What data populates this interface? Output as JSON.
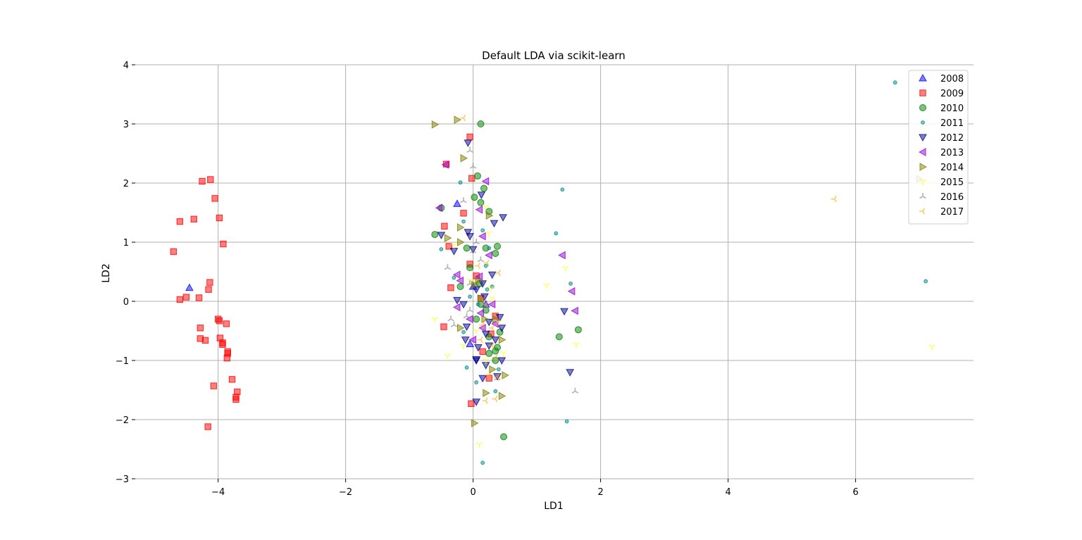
{
  "chart_data": {
    "type": "scatter",
    "title": "Default LDA via scikit-learn",
    "xlabel": "LD1",
    "ylabel": "LD2",
    "xlim": [
      -5.3,
      7.85
    ],
    "ylim": [
      -3.0,
      4.0
    ],
    "xticks": [
      -4,
      -2,
      0,
      2,
      4,
      6
    ],
    "yticks": [
      -3,
      -2,
      -1,
      0,
      1,
      2,
      3,
      4
    ],
    "xtick_labels": [
      "−4",
      "−2",
      "0",
      "2",
      "4",
      "6"
    ],
    "ytick_labels": [
      "−3",
      "−2",
      "−1",
      "0",
      "1",
      "2",
      "3",
      "4"
    ],
    "grid": true,
    "legend_position": "top-right",
    "series": [
      {
        "name": "2008",
        "marker": "triangle-up",
        "color": "#0000ff",
        "points": [
          [
            -4.45,
            0.23
          ],
          [
            -0.25,
            1.65
          ],
          [
            0.0,
            0.25
          ],
          [
            0.2,
            -0.05
          ],
          [
            -0.05,
            -0.72
          ]
        ]
      },
      {
        "name": "2009",
        "marker": "square",
        "color": "#ff0000",
        "points": [
          [
            -4.7,
            0.84
          ],
          [
            -4.6,
            1.35
          ],
          [
            -4.38,
            1.39
          ],
          [
            -4.25,
            2.03
          ],
          [
            -4.12,
            2.06
          ],
          [
            -4.05,
            1.74
          ],
          [
            -3.98,
            1.41
          ],
          [
            -3.92,
            0.97
          ],
          [
            -4.6,
            0.03
          ],
          [
            -4.5,
            0.07
          ],
          [
            -4.3,
            0.06
          ],
          [
            -4.15,
            0.2
          ],
          [
            -4.13,
            0.32
          ],
          [
            -4.0,
            -0.3
          ],
          [
            -3.98,
            -0.33
          ],
          [
            -3.87,
            -0.38
          ],
          [
            -4.28,
            -0.45
          ],
          [
            -4.28,
            -0.63
          ],
          [
            -4.2,
            -0.66
          ],
          [
            -3.97,
            -0.62
          ],
          [
            -3.93,
            -0.7
          ],
          [
            -3.93,
            -0.73
          ],
          [
            -3.85,
            -0.85
          ],
          [
            -3.85,
            -0.88
          ],
          [
            -3.86,
            -0.96
          ],
          [
            -3.78,
            -1.32
          ],
          [
            -4.07,
            -1.43
          ],
          [
            -3.7,
            -1.53
          ],
          [
            -3.72,
            -1.62
          ],
          [
            -3.72,
            -1.66
          ],
          [
            -4.16,
            -2.12
          ],
          [
            -0.05,
            2.78
          ],
          [
            -0.42,
            2.32
          ],
          [
            -0.02,
            2.08
          ],
          [
            -0.15,
            1.49
          ],
          [
            -0.45,
            1.27
          ],
          [
            -0.38,
            0.93
          ],
          [
            -0.35,
            0.23
          ],
          [
            -0.05,
            0.63
          ],
          [
            0.05,
            0.43
          ],
          [
            -0.46,
            -0.43
          ],
          [
            0.12,
            0.05
          ],
          [
            0.28,
            -0.55
          ],
          [
            -0.03,
            -1.73
          ],
          [
            0.25,
            -1.3
          ],
          [
            0.35,
            -0.25
          ],
          [
            0.15,
            -0.85
          ]
        ]
      },
      {
        "name": "2010",
        "marker": "circle",
        "color": "#008000",
        "points": [
          [
            0.12,
            3.0
          ],
          [
            0.07,
            2.12
          ],
          [
            0.17,
            1.91
          ],
          [
            0.02,
            1.76
          ],
          [
            0.12,
            1.67
          ],
          [
            -0.5,
            1.58
          ],
          [
            0.25,
            1.52
          ],
          [
            -0.6,
            1.13
          ],
          [
            0.38,
            0.93
          ],
          [
            -0.1,
            0.9
          ],
          [
            0.35,
            0.81
          ],
          [
            -0.05,
            0.57
          ],
          [
            0.1,
            0.3
          ],
          [
            0.12,
            -0.05
          ],
          [
            0.2,
            -0.15
          ],
          [
            0.05,
            -0.3
          ],
          [
            0.42,
            -0.52
          ],
          [
            0.25,
            -0.6
          ],
          [
            0.38,
            -0.78
          ],
          [
            0.35,
            -0.84
          ],
          [
            0.25,
            -0.88
          ],
          [
            0.35,
            -1.0
          ],
          [
            1.35,
            -0.6
          ],
          [
            1.65,
            -0.48
          ],
          [
            0.48,
            -2.29
          ],
          [
            -0.2,
            0.25
          ],
          [
            0.2,
            0.9
          ]
        ]
      },
      {
        "name": "2011",
        "marker": "dot",
        "color": "#008b8b",
        "points": [
          [
            6.62,
            3.7
          ],
          [
            7.1,
            0.34
          ],
          [
            1.4,
            1.89
          ],
          [
            1.3,
            1.15
          ],
          [
            1.53,
            0.3
          ],
          [
            1.47,
            -2.03
          ],
          [
            0.15,
            -2.73
          ],
          [
            -0.2,
            2.01
          ],
          [
            -0.15,
            1.35
          ],
          [
            0.15,
            1.2
          ],
          [
            -0.5,
            0.88
          ],
          [
            0.25,
            0.9
          ],
          [
            0.3,
            0.25
          ],
          [
            -0.05,
            0.08
          ],
          [
            0.22,
            0.2
          ],
          [
            -0.15,
            -0.52
          ],
          [
            0.08,
            -0.05
          ],
          [
            -0.1,
            -1.12
          ],
          [
            0.05,
            -1.37
          ],
          [
            0.4,
            -1.15
          ],
          [
            0.35,
            -1.52
          ],
          [
            0.2,
            0.6
          ],
          [
            -0.3,
            0.4
          ]
        ]
      },
      {
        "name": "2012",
        "marker": "triangle-down",
        "color": "#00008b",
        "points": [
          [
            -0.08,
            2.68
          ],
          [
            0.13,
            1.8
          ],
          [
            0.47,
            1.42
          ],
          [
            0.33,
            1.32
          ],
          [
            -0.08,
            1.17
          ],
          [
            -0.05,
            1.1
          ],
          [
            -0.5,
            1.12
          ],
          [
            0.0,
            0.88
          ],
          [
            -0.3,
            0.85
          ],
          [
            0.15,
            0.3
          ],
          [
            0.3,
            0.45
          ],
          [
            0.05,
            0.2
          ],
          [
            0.18,
            0.08
          ],
          [
            -0.25,
            0.02
          ],
          [
            -0.15,
            -0.05
          ],
          [
            0.42,
            -0.27
          ],
          [
            0.25,
            -0.35
          ],
          [
            0.45,
            -0.45
          ],
          [
            0.2,
            -0.55
          ],
          [
            -0.1,
            -0.43
          ],
          [
            0.35,
            -0.65
          ],
          [
            0.45,
            -1.0
          ],
          [
            0.05,
            -0.98
          ],
          [
            0.05,
            -1.0
          ],
          [
            0.2,
            -1.08
          ],
          [
            0.38,
            -1.27
          ],
          [
            0.15,
            -1.3
          ],
          [
            0.05,
            -1.7
          ],
          [
            1.43,
            -0.17
          ],
          [
            1.52,
            -1.2
          ],
          [
            -0.12,
            -0.65
          ],
          [
            0.08,
            -0.78
          ],
          [
            0.25,
            -0.75
          ]
        ]
      },
      {
        "name": "2013",
        "marker": "triangle-left",
        "color": "#9400d3",
        "points": [
          [
            -0.43,
            2.31
          ],
          [
            0.2,
            2.03
          ],
          [
            -0.53,
            1.58
          ],
          [
            0.1,
            1.55
          ],
          [
            0.15,
            1.1
          ],
          [
            0.25,
            0.78
          ],
          [
            -0.25,
            0.45
          ],
          [
            0.1,
            0.42
          ],
          [
            -0.2,
            0.35
          ],
          [
            1.4,
            0.78
          ],
          [
            1.55,
            0.17
          ],
          [
            1.6,
            -0.16
          ],
          [
            -0.25,
            -0.1
          ],
          [
            -0.05,
            -0.3
          ],
          [
            0.12,
            -0.2
          ],
          [
            0.3,
            -0.05
          ],
          [
            0.15,
            -0.45
          ],
          [
            0.35,
            -0.38
          ],
          [
            0.0,
            -0.65
          ]
        ]
      },
      {
        "name": "2014",
        "marker": "triangle-right",
        "color": "#808000",
        "points": [
          [
            -0.6,
            2.99
          ],
          [
            -0.25,
            3.07
          ],
          [
            -0.15,
            2.42
          ],
          [
            0.25,
            1.45
          ],
          [
            -0.2,
            1.25
          ],
          [
            -0.4,
            1.07
          ],
          [
            -0.2,
            1.0
          ],
          [
            0.08,
            0.35
          ],
          [
            0.02,
            0.28
          ],
          [
            0.35,
            -0.3
          ],
          [
            0.18,
            -0.3
          ],
          [
            -0.2,
            -0.45
          ],
          [
            0.45,
            -0.65
          ],
          [
            0.5,
            -1.25
          ],
          [
            0.2,
            -1.55
          ],
          [
            0.45,
            -1.6
          ],
          [
            0.02,
            -2.06
          ],
          [
            7.0,
            2.07
          ],
          [
            0.3,
            -1.15
          ],
          [
            0.12,
            0.05
          ]
        ]
      },
      {
        "name": "2015",
        "marker": "tri-down",
        "color": "#ffff00",
        "points": [
          [
            0.2,
            1.6
          ],
          [
            0.25,
            1.15
          ],
          [
            -0.3,
            0.95
          ],
          [
            -0.6,
            -0.3
          ],
          [
            -0.4,
            -0.92
          ],
          [
            -0.15,
            -0.75
          ],
          [
            0.1,
            -2.42
          ],
          [
            1.15,
            0.27
          ],
          [
            1.45,
            0.56
          ],
          [
            1.62,
            -0.73
          ],
          [
            7.2,
            -0.77
          ],
          [
            7.15,
            2.03
          ],
          [
            0.3,
            0.05
          ],
          [
            0.4,
            -0.35
          ],
          [
            0.05,
            -0.5
          ],
          [
            0.48,
            -0.88
          ],
          [
            0.2,
            -1.0
          ],
          [
            -0.05,
            0.35
          ],
          [
            0.28,
            0.22
          ]
        ]
      },
      {
        "name": "2016",
        "marker": "tri-up",
        "color": "#808080",
        "points": [
          [
            -0.05,
            2.55
          ],
          [
            0.0,
            2.28
          ],
          [
            -0.15,
            1.7
          ],
          [
            0.05,
            1.0
          ],
          [
            -0.4,
            0.57
          ],
          [
            -0.05,
            0.3
          ],
          [
            -0.35,
            -0.3
          ],
          [
            -0.3,
            -0.4
          ],
          [
            -0.1,
            -0.25
          ],
          [
            -0.05,
            -0.15
          ],
          [
            0.38,
            -1.3
          ],
          [
            1.6,
            -1.52
          ],
          [
            0.12,
            0.7
          ],
          [
            0.0,
            0.85
          ]
        ]
      },
      {
        "name": "2017",
        "marker": "tri-left",
        "color": "#ffa500",
        "points": [
          [
            -0.15,
            3.1
          ],
          [
            5.67,
            1.73
          ],
          [
            0.22,
            0.65
          ],
          [
            0.4,
            0.48
          ],
          [
            0.2,
            -0.05
          ],
          [
            0.15,
            -0.4
          ],
          [
            0.3,
            -0.45
          ],
          [
            0.12,
            -0.65
          ],
          [
            0.3,
            -0.75
          ],
          [
            0.38,
            -1.28
          ],
          [
            0.35,
            -1.65
          ],
          [
            0.2,
            -1.68
          ],
          [
            0.25,
            -1.25
          ],
          [
            0.08,
            0.6
          ],
          [
            0.35,
            -0.95
          ]
        ]
      }
    ]
  }
}
